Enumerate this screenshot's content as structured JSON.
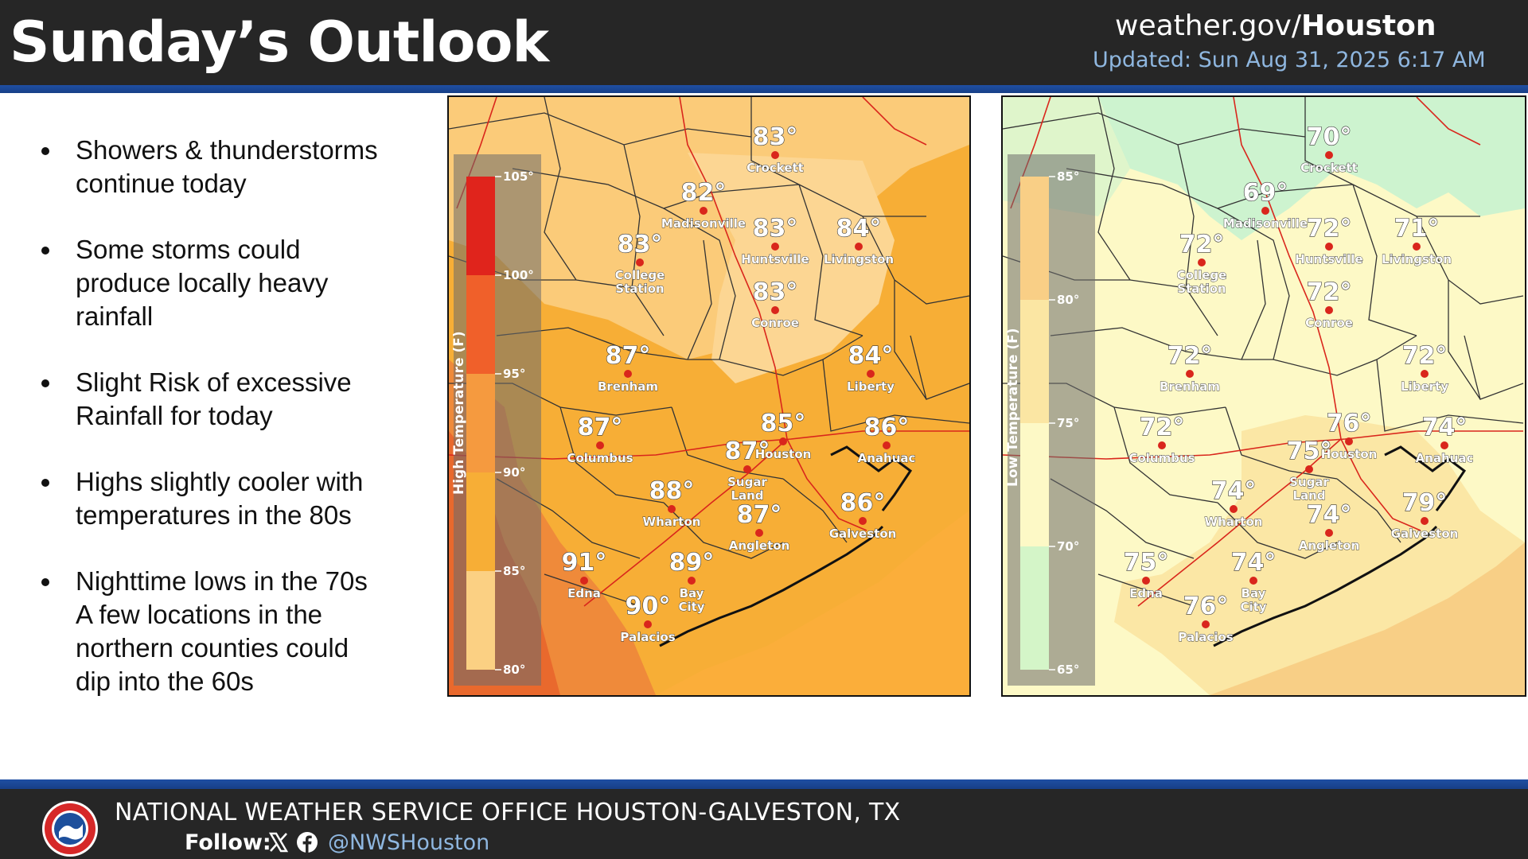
{
  "header": {
    "title": "Sunday’s Outlook",
    "site_prefix": "weather.gov/",
    "site_bold": "Houston",
    "updated": "Updated: Sun Aug 31, 2025 6:17 AM"
  },
  "bullets": [
    "Showers & thunderstorms\ncontinue today",
    "Some storms could\nproduce locally heavy\nrainfall",
    "Slight Risk of excessive\nRainfall for today",
    "Highs slightly cooler with\ntemperatures in the 80s",
    "Nighttime lows in the 70s\nA few locations in the\nnorthern counties could\ndip into the 60s"
  ],
  "high_map": {
    "legend_title": "High Temperature (F)",
    "legend_ticks": [
      "105°",
      "100°",
      "95°",
      "90°",
      "85°",
      "80°"
    ],
    "legend_colors": [
      "#e0241c",
      "#f0602a",
      "#f59a3f",
      "#f7ae36",
      "#fbd083"
    ],
    "cities": [
      {
        "name": "Crockett",
        "temp": "83°"
      },
      {
        "name": "Madisonville",
        "temp": "82°"
      },
      {
        "name": "Huntsville",
        "temp": "83°"
      },
      {
        "name": "Livingston",
        "temp": "84°"
      },
      {
        "name": "College\nStation",
        "temp": "83°"
      },
      {
        "name": "Conroe",
        "temp": "83°"
      },
      {
        "name": "Brenham",
        "temp": "87°"
      },
      {
        "name": "Liberty",
        "temp": "84°"
      },
      {
        "name": "Houston",
        "temp": "85°"
      },
      {
        "name": "Anahuac",
        "temp": "86°"
      },
      {
        "name": "Columbus",
        "temp": "87°"
      },
      {
        "name": "Sugar\nLand",
        "temp": "87°"
      },
      {
        "name": "Wharton",
        "temp": "88°"
      },
      {
        "name": "Galveston",
        "temp": "86°"
      },
      {
        "name": "Angleton",
        "temp": "87°"
      },
      {
        "name": "Edna",
        "temp": "91°"
      },
      {
        "name": "Bay\nCity",
        "temp": "89°"
      },
      {
        "name": "Palacios",
        "temp": "90°"
      }
    ]
  },
  "low_map": {
    "legend_title": "Low Temperature (F)",
    "legend_ticks": [
      "85°",
      "80°",
      "75°",
      "70°",
      "65°"
    ],
    "legend_colors": [
      "#f9cf86",
      "#fbe6a3",
      "#fdf9c6",
      "#d4f5c8"
    ],
    "cities": [
      {
        "name": "Crockett",
        "temp": "70°"
      },
      {
        "name": "Madisonville",
        "temp": "69°"
      },
      {
        "name": "Huntsville",
        "temp": "72°"
      },
      {
        "name": "Livingston",
        "temp": "71°"
      },
      {
        "name": "College\nStation",
        "temp": "72°"
      },
      {
        "name": "Conroe",
        "temp": "72°"
      },
      {
        "name": "Brenham",
        "temp": "72°"
      },
      {
        "name": "Liberty",
        "temp": "72°"
      },
      {
        "name": "Houston",
        "temp": "76°"
      },
      {
        "name": "Anahuac",
        "temp": "74°"
      },
      {
        "name": "Columbus",
        "temp": "72°"
      },
      {
        "name": "Sugar\nLand",
        "temp": "75°"
      },
      {
        "name": "Wharton",
        "temp": "74°"
      },
      {
        "name": "Galveston",
        "temp": "79°"
      },
      {
        "name": "Angleton",
        "temp": "74°"
      },
      {
        "name": "Edna",
        "temp": "75°"
      },
      {
        "name": "Bay\nCity",
        "temp": "74°"
      },
      {
        "name": "Palacios",
        "temp": "76°"
      }
    ]
  },
  "footer": {
    "office": "NATIONAL WEATHER SERVICE OFFICE HOUSTON-GALVESTON, TX",
    "follow": "Follow:",
    "handle": "@NWSHouston",
    "social_icons": [
      "x-icon",
      "facebook-icon"
    ],
    "logo_text": "NATIONAL WEATHER SERVICE"
  }
}
